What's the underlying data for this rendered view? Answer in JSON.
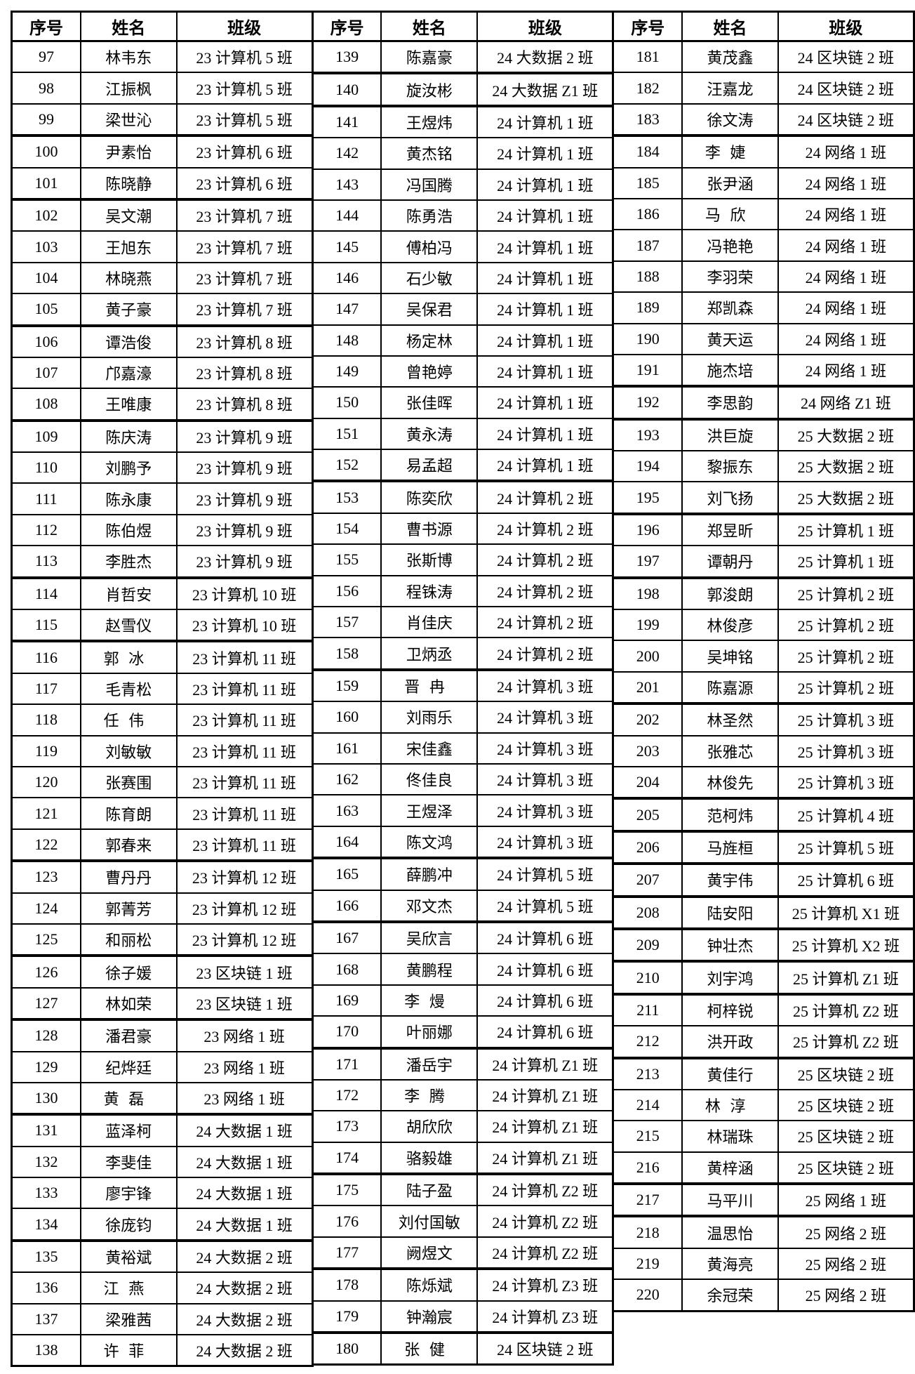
{
  "page": {
    "background_color": "#ffffff",
    "text_color": "#000000",
    "grid_color": "#000000",
    "description": "Scanned three-column student roster table, numbered 97-220"
  },
  "table": {
    "column_headers": [
      "序号",
      "姓名",
      "班级"
    ],
    "groups": [
      {
        "rows": [
          [
            "97",
            "林韦东",
            "23 计算机 5 班"
          ],
          [
            "98",
            "江振枫",
            "23 计算机 5 班"
          ],
          [
            "99",
            "梁世沁",
            "23 计算机 5 班"
          ],
          [
            "100",
            "尹素怡",
            "23 计算机 6 班"
          ],
          [
            "101",
            "陈晓静",
            "23 计算机 6 班"
          ],
          [
            "102",
            "吴文潮",
            "23 计算机 7 班"
          ],
          [
            "103",
            "王旭东",
            "23 计算机 7 班"
          ],
          [
            "104",
            "林晓燕",
            "23 计算机 7 班"
          ],
          [
            "105",
            "黄子豪",
            "23 计算机 7 班"
          ],
          [
            "106",
            "谭浩俊",
            "23 计算机 8 班"
          ],
          [
            "107",
            "邝嘉濠",
            "23 计算机 8 班"
          ],
          [
            "108",
            "王唯康",
            "23 计算机 8 班"
          ],
          [
            "109",
            "陈庆涛",
            "23 计算机 9 班"
          ],
          [
            "110",
            "刘鹏予",
            "23 计算机 9 班"
          ],
          [
            "111",
            "陈永康",
            "23 计算机 9 班"
          ],
          [
            "112",
            "陈伯煜",
            "23 计算机 9 班"
          ],
          [
            "113",
            "李胜杰",
            "23 计算机 9 班"
          ],
          [
            "114",
            "肖哲安",
            "23 计算机 10 班"
          ],
          [
            "115",
            "赵雪仪",
            "23 计算机 10 班"
          ],
          [
            "116",
            "郭冰",
            "23 计算机 11 班"
          ],
          [
            "117",
            "毛青松",
            "23 计算机 11 班"
          ],
          [
            "118",
            "任伟",
            "23 计算机 11 班"
          ],
          [
            "119",
            "刘敏敏",
            "23 计算机 11 班"
          ],
          [
            "120",
            "张赛围",
            "23 计算机 11 班"
          ],
          [
            "121",
            "陈育朗",
            "23 计算机 11 班"
          ],
          [
            "122",
            "郭春来",
            "23 计算机 11 班"
          ],
          [
            "123",
            "曹丹丹",
            "23 计算机 12 班"
          ],
          [
            "124",
            "郭菁芳",
            "23 计算机 12 班"
          ],
          [
            "125",
            "和丽松",
            "23 计算机 12 班"
          ],
          [
            "126",
            "徐子媛",
            "23 区块链 1 班"
          ],
          [
            "127",
            "林如荣",
            "23 区块链 1 班"
          ],
          [
            "128",
            "潘君豪",
            "23 网络 1 班"
          ],
          [
            "129",
            "纪烨廷",
            "23 网络 1 班"
          ],
          [
            "130",
            "黄磊",
            "23 网络 1 班"
          ],
          [
            "131",
            "蓝泽柯",
            "24 大数据 1 班"
          ],
          [
            "132",
            "李斐佳",
            "24 大数据 1 班"
          ],
          [
            "133",
            "廖宇锋",
            "24 大数据 1 班"
          ],
          [
            "134",
            "徐庞钧",
            "24 大数据 1 班"
          ],
          [
            "135",
            "黄裕斌",
            "24 大数据 2 班"
          ],
          [
            "136",
            "江燕",
            "24 大数据 2 班"
          ],
          [
            "137",
            "梁雅茜",
            "24 大数据 2 班"
          ],
          [
            "138",
            "许菲",
            "24 大数据 2 班"
          ]
        ]
      },
      {
        "rows": [
          [
            "139",
            "陈嘉豪",
            "24 大数据 2 班"
          ],
          [
            "140",
            "旋汝彬",
            "24 大数据 Z1 班"
          ],
          [
            "141",
            "王煜炜",
            "24 计算机 1 班"
          ],
          [
            "142",
            "黄杰铭",
            "24 计算机 1 班"
          ],
          [
            "143",
            "冯国腾",
            "24 计算机 1 班"
          ],
          [
            "144",
            "陈勇浩",
            "24 计算机 1 班"
          ],
          [
            "145",
            "傅柏冯",
            "24 计算机 1 班"
          ],
          [
            "146",
            "石少敏",
            "24 计算机 1 班"
          ],
          [
            "147",
            "吴保君",
            "24 计算机 1 班"
          ],
          [
            "148",
            "杨定林",
            "24 计算机 1 班"
          ],
          [
            "149",
            "曾艳婷",
            "24 计算机 1 班"
          ],
          [
            "150",
            "张佳晖",
            "24 计算机 1 班"
          ],
          [
            "151",
            "黄永涛",
            "24 计算机 1 班"
          ],
          [
            "152",
            "易孟超",
            "24 计算机 1 班"
          ],
          [
            "153",
            "陈奕欣",
            "24 计算机 2 班"
          ],
          [
            "154",
            "曹书源",
            "24 计算机 2 班"
          ],
          [
            "155",
            "张斯博",
            "24 计算机 2 班"
          ],
          [
            "156",
            "程铢涛",
            "24 计算机 2 班"
          ],
          [
            "157",
            "肖佳庆",
            "24 计算机 2 班"
          ],
          [
            "158",
            "卫炳丞",
            "24 计算机 2 班"
          ],
          [
            "159",
            "晋冉",
            "24 计算机 3 班"
          ],
          [
            "160",
            "刘雨乐",
            "24 计算机 3 班"
          ],
          [
            "161",
            "宋佳鑫",
            "24 计算机 3 班"
          ],
          [
            "162",
            "佟佳良",
            "24 计算机 3 班"
          ],
          [
            "163",
            "王煜泽",
            "24 计算机 3 班"
          ],
          [
            "164",
            "陈文鸿",
            "24 计算机 3 班"
          ],
          [
            "165",
            "薛鹏冲",
            "24 计算机 5 班"
          ],
          [
            "166",
            "邓文杰",
            "24 计算机 5 班"
          ],
          [
            "167",
            "吴欣言",
            "24 计算机 6 班"
          ],
          [
            "168",
            "黄鹏程",
            "24 计算机 6 班"
          ],
          [
            "169",
            "李熳",
            "24 计算机 6 班"
          ],
          [
            "170",
            "叶丽娜",
            "24 计算机 6 班"
          ],
          [
            "171",
            "潘岳宇",
            "24 计算机 Z1 班"
          ],
          [
            "172",
            "李腾",
            "24 计算机 Z1 班"
          ],
          [
            "173",
            "胡欣欣",
            "24 计算机 Z1 班"
          ],
          [
            "174",
            "骆毅雄",
            "24 计算机 Z1 班"
          ],
          [
            "175",
            "陆子盈",
            "24 计算机 Z2 班"
          ],
          [
            "176",
            "刘付国敏",
            "24 计算机 Z2 班"
          ],
          [
            "177",
            "阙煜文",
            "24 计算机 Z2 班"
          ],
          [
            "178",
            "陈烁斌",
            "24 计算机 Z3 班"
          ],
          [
            "179",
            "钟瀚宸",
            "24 计算机 Z3 班"
          ],
          [
            "180",
            "张健",
            "24 区块链 2 班"
          ]
        ]
      },
      {
        "rows": [
          [
            "181",
            "黄茂鑫",
            "24 区块链 2 班"
          ],
          [
            "182",
            "汪嘉龙",
            "24 区块链 2 班"
          ],
          [
            "183",
            "徐文涛",
            "24 区块链 2 班"
          ],
          [
            "184",
            "李婕",
            "24 网络 1 班"
          ],
          [
            "185",
            "张尹涵",
            "24 网络 1 班"
          ],
          [
            "186",
            "马欣",
            "24 网络 1 班"
          ],
          [
            "187",
            "冯艳艳",
            "24 网络 1 班"
          ],
          [
            "188",
            "李羽荣",
            "24 网络 1 班"
          ],
          [
            "189",
            "郑凯森",
            "24 网络 1 班"
          ],
          [
            "190",
            "黄天运",
            "24 网络 1 班"
          ],
          [
            "191",
            "施杰培",
            "24 网络 1 班"
          ],
          [
            "192",
            "李思韵",
            "24 网络 Z1 班"
          ],
          [
            "193",
            "洪巨旋",
            "25 大数据 2 班"
          ],
          [
            "194",
            "黎振东",
            "25 大数据 2 班"
          ],
          [
            "195",
            "刘飞扬",
            "25 大数据 2 班"
          ],
          [
            "196",
            "郑昱昕",
            "25 计算机 1 班"
          ],
          [
            "197",
            "谭朝丹",
            "25 计算机 1 班"
          ],
          [
            "198",
            "郭浚朗",
            "25 计算机 2 班"
          ],
          [
            "199",
            "林俊彦",
            "25 计算机 2 班"
          ],
          [
            "200",
            "吴坤铭",
            "25 计算机 2 班"
          ],
          [
            "201",
            "陈嘉源",
            "25 计算机 2 班"
          ],
          [
            "202",
            "林圣然",
            "25 计算机 3 班"
          ],
          [
            "203",
            "张雅芯",
            "25 计算机 3 班"
          ],
          [
            "204",
            "林俊先",
            "25 计算机 3 班"
          ],
          [
            "205",
            "范柯炜",
            "25 计算机 4 班"
          ],
          [
            "206",
            "马旌桓",
            "25 计算机 5 班"
          ],
          [
            "207",
            "黄宇伟",
            "25 计算机 6 班"
          ],
          [
            "208",
            "陆安阳",
            "25 计算机 X1 班"
          ],
          [
            "209",
            "钟壮杰",
            "25 计算机 X2 班"
          ],
          [
            "210",
            "刘宇鸿",
            "25 计算机 Z1 班"
          ],
          [
            "211",
            "柯梓锐",
            "25 计算机 Z2 班"
          ],
          [
            "212",
            "洪开政",
            "25 计算机 Z2 班"
          ],
          [
            "213",
            "黄佳行",
            "25 区块链 2 班"
          ],
          [
            "214",
            "林淳",
            "25 区块链 2 班"
          ],
          [
            "215",
            "林瑞珠",
            "25 区块链 2 班"
          ],
          [
            "216",
            "黄梓涵",
            "25 区块链 2 班"
          ],
          [
            "217",
            "马平川",
            "25 网络 1 班"
          ],
          [
            "218",
            "温思怡",
            "25 网络 2 班"
          ],
          [
            "219",
            "黄海亮",
            "25 网络 2 班"
          ],
          [
            "220",
            "余冠荣",
            "25 网络 2 班"
          ]
        ]
      }
    ]
  }
}
